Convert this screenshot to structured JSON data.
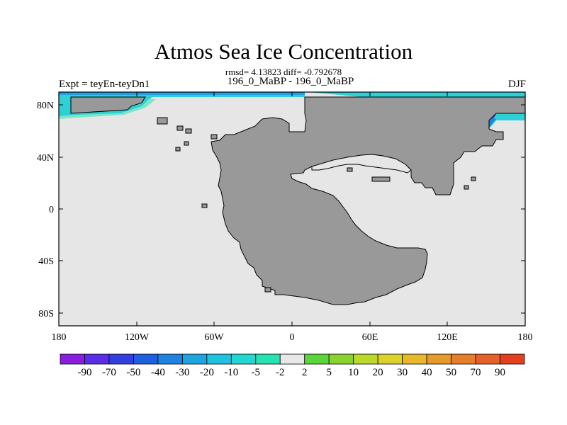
{
  "title": "Atmos Sea Ice Concentration",
  "subtitle": "rmsd= 4.13823 diff= -0.792678",
  "left_label": "Expt = teyEn-teyDn1",
  "center_label": "196_0_MaBP - 196_0_MaBP",
  "right_label": "DJF",
  "colors": {
    "ocean": "#e6e6e6",
    "land": "#999999",
    "coast": "#000000"
  },
  "chart_data": {
    "type": "heatmap",
    "x_ticks": [
      "180",
      "120W",
      "60W",
      "0",
      "60E",
      "120E",
      "180"
    ],
    "y_ticks": [
      "80N",
      "40N",
      "0",
      "40S",
      "80S"
    ],
    "xlim": [
      -180,
      180
    ],
    "ylim": [
      -90,
      90
    ],
    "colorbar": {
      "labels": [
        "-90",
        "-70",
        "-50",
        "-40",
        "-30",
        "-20",
        "-10",
        "-5",
        "-2",
        "2",
        "5",
        "10",
        "20",
        "30",
        "40",
        "50",
        "70",
        "90"
      ],
      "colors": [
        "#8a1ee0",
        "#5a2ee6",
        "#3340e0",
        "#1f5fe0",
        "#1f82e0",
        "#1ea6e0",
        "#1fc3e0",
        "#22d8d0",
        "#27e3b0",
        "#e8e8e8",
        "#5ad63a",
        "#8ad22e",
        "#bcd82a",
        "#dcd22a",
        "#e6b82a",
        "#e69a2a",
        "#e67e2a",
        "#e6602a",
        "#e2401e"
      ]
    }
  }
}
